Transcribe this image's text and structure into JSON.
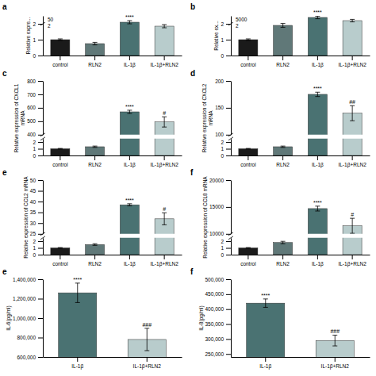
{
  "chart_data": [
    {
      "type": "bar",
      "title": "a",
      "ylabel": "Relative expre...",
      "categories": [
        "control",
        "RLN2",
        "IL-1β",
        "IL-1β+RLN2"
      ],
      "values": [
        1.0,
        0.75,
        2.1,
        1.85
      ],
      "errors": [
        0.05,
        0.08,
        0.1,
        0.1
      ],
      "colors": [
        "#1a1a1a",
        "#607878",
        "#4a7272",
        "#b8cccc"
      ],
      "ylim": [
        0,
        2.5
      ],
      "yticks": [
        0,
        1,
        2
      ],
      "annotations": [
        "50",
        "2"
      ],
      "significance": [
        null,
        null,
        "****",
        null
      ]
    },
    {
      "type": "bar",
      "title": "b",
      "ylabel": "Relative ex...",
      "categories": [
        "control",
        "RLN2",
        "IL-1β",
        "IL-1β+RLN2"
      ],
      "values": [
        1.0,
        1.9,
        2.4,
        2.2
      ],
      "errors": [
        0.05,
        0.12,
        0.08,
        0.08
      ],
      "colors": [
        "#1a1a1a",
        "#607878",
        "#4a7272",
        "#b8cccc"
      ],
      "ylim": [
        0,
        2.5
      ],
      "yticks": [
        0,
        1,
        2
      ],
      "annotations": [
        "5000",
        "2"
      ],
      "significance": [
        null,
        null,
        "****",
        null
      ]
    },
    {
      "type": "bar",
      "title": "c",
      "ylabel": "Relative expression of CXCL1\nmRNA",
      "categories": [
        "control",
        "RLN2",
        "IL-1β",
        "IL-1β+RLN2"
      ],
      "values": [
        1.0,
        1.3,
        570.0,
        495.0
      ],
      "errors": [
        0.05,
        0.1,
        12.0,
        38.0
      ],
      "colors": [
        "#1a1a1a",
        "#607878",
        "#4a7272",
        "#b8cccc"
      ],
      "ylim": [
        [
          0,
          2.5
        ],
        [
          400,
          800
        ]
      ],
      "yticks": [
        [
          0,
          1,
          2
        ],
        [
          400,
          500,
          600,
          700,
          800
        ]
      ],
      "significance": [
        null,
        null,
        "****",
        "#"
      ]
    },
    {
      "type": "bar",
      "title": "d",
      "ylabel": "Relative expression of CXCL2\nmRNA",
      "categories": [
        "control",
        "RLN2",
        "IL-1β",
        "IL-1β+RLN2"
      ],
      "values": [
        1.0,
        1.3,
        175.0,
        140.0
      ],
      "errors": [
        0.05,
        0.1,
        4.0,
        14.0
      ],
      "colors": [
        "#1a1a1a",
        "#607878",
        "#4a7272",
        "#b8cccc"
      ],
      "ylim": [
        [
          0,
          2.5
        ],
        [
          100,
          200
        ]
      ],
      "yticks": [
        [
          0,
          1,
          2
        ],
        [
          100,
          150,
          200
        ]
      ],
      "significance": [
        null,
        null,
        "****",
        "##"
      ]
    },
    {
      "type": "bar",
      "title": "e",
      "ylabel": "Relative expression of CCL2 mRNA",
      "categories": [
        "control",
        "RLN2",
        "IL-1β",
        "IL-1β+RLN2"
      ],
      "values": [
        1.0,
        1.5,
        38.5,
        32.0
      ],
      "errors": [
        0.05,
        0.12,
        0.5,
        2.8
      ],
      "colors": [
        "#1a1a1a",
        "#607878",
        "#4a7272",
        "#b8cccc"
      ],
      "ylim": [
        [
          0,
          2.5
        ],
        [
          25,
          50
        ]
      ],
      "yticks": [
        [
          0,
          1,
          2
        ],
        [
          25,
          30,
          35,
          40,
          45,
          50
        ]
      ],
      "significance": [
        null,
        null,
        "****",
        "#"
      ]
    },
    {
      "type": "bar",
      "title": "f",
      "ylabel": "Relative expression of CCL8 mRNA",
      "categories": [
        "control",
        "RLN2",
        "IL-1β",
        "IL-1β+RLN2"
      ],
      "values": [
        1.0,
        1.8,
        14700.0,
        11500.0
      ],
      "errors": [
        0.05,
        0.18,
        450.0,
        1400.0
      ],
      "colors": [
        "#1a1a1a",
        "#607878",
        "#4a7272",
        "#b8cccc"
      ],
      "ylim": [
        [
          0,
          2.5
        ],
        [
          10000,
          20000
        ]
      ],
      "yticks": [
        [
          0,
          1,
          2
        ],
        [
          10000,
          15000,
          20000
        ]
      ],
      "significance": [
        null,
        null,
        "****",
        "#"
      ]
    },
    {
      "type": "bar",
      "title": "e",
      "ylabel": "IL-6(pg/ml)",
      "categories": [
        "IL-1β",
        "IL-1β+RLN2"
      ],
      "values": [
        1260000.0,
        780000.0
      ],
      "errors": [
        100000.0,
        115000.0
      ],
      "colors": [
        "#4a7272",
        "#b8cccc"
      ],
      "ylim": [
        600000,
        1400000
      ],
      "yticks": [
        {
          "value": 600000,
          "label": "600,000"
        },
        {
          "value": 800000,
          "label": "800,000"
        },
        {
          "value": 1000000,
          "label": "1,000,000"
        },
        {
          "value": 1200000,
          "label": "1,200,000"
        },
        {
          "value": 1400000,
          "label": "1,400,000"
        }
      ],
      "significance": [
        "****",
        "###"
      ]
    },
    {
      "type": "bar",
      "title": "f",
      "ylabel": "IL-8(pg/ml)",
      "categories": [
        "IL-1β",
        "IL-1β+RLN2"
      ],
      "values": [
        420000.0,
        295000.0
      ],
      "errors": [
        14000.0,
        18000.0
      ],
      "colors": [
        "#4a7272",
        "#b8cccc"
      ],
      "ylim": [
        240000,
        500000
      ],
      "yticks": [
        {
          "value": 250000,
          "label": "250,000"
        },
        {
          "value": 300000,
          "label": "300,000"
        },
        {
          "value": 350000,
          "label": "350,000"
        },
        {
          "value": 400000,
          "label": "400,000"
        },
        {
          "value": 450000,
          "label": "450,000"
        },
        {
          "value": 500000,
          "label": "500,000"
        }
      ],
      "significance": [
        "****",
        "###"
      ]
    }
  ]
}
